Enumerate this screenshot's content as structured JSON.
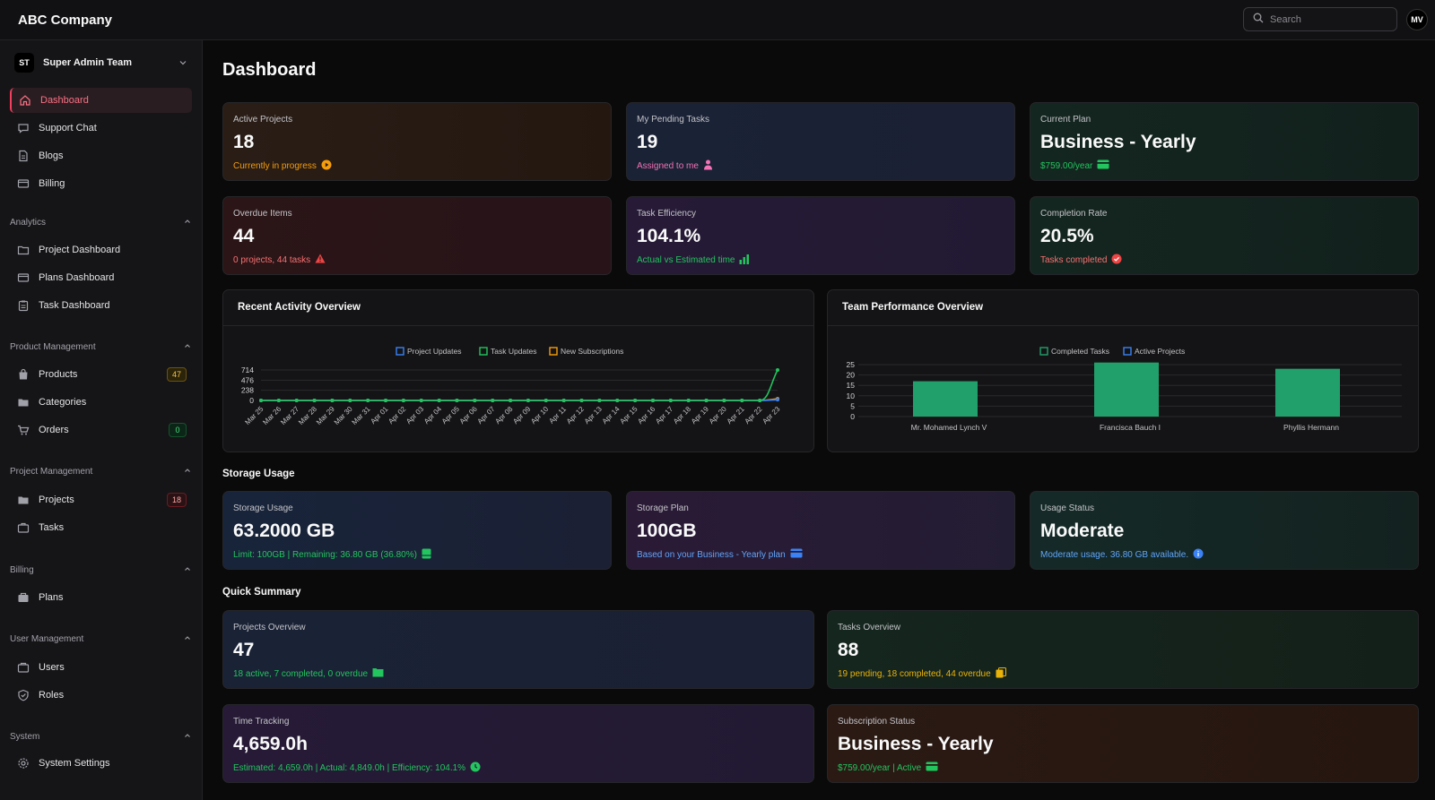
{
  "app": {
    "company": "ABC Company",
    "user_initials": "MV"
  },
  "search": {
    "placeholder": "Search"
  },
  "sidebar": {
    "team_initials": "ST",
    "team_name": "Super Admin Team",
    "top_items": [
      {
        "label": "Dashboard",
        "icon": "home-icon"
      },
      {
        "label": "Support Chat",
        "icon": "chat-icon"
      },
      {
        "label": "Blogs",
        "icon": "document-icon"
      },
      {
        "label": "Billing",
        "icon": "credit-card-icon"
      }
    ],
    "sections": [
      {
        "title": "Analytics",
        "items": [
          {
            "label": "Project Dashboard"
          },
          {
            "label": "Plans Dashboard"
          },
          {
            "label": "Task Dashboard"
          }
        ]
      },
      {
        "title": "Product Management",
        "items": [
          {
            "label": "Products",
            "badge": "47"
          },
          {
            "label": "Categories"
          },
          {
            "label": "Orders",
            "badge": "0"
          }
        ]
      },
      {
        "title": "Project Management",
        "items": [
          {
            "label": "Projects",
            "badge": "18"
          },
          {
            "label": "Tasks"
          }
        ]
      },
      {
        "title": "Billing",
        "items": [
          {
            "label": "Plans"
          }
        ]
      },
      {
        "title": "User Management",
        "items": [
          {
            "label": "Users"
          },
          {
            "label": "Roles"
          }
        ]
      },
      {
        "title": "System",
        "items": [
          {
            "label": "System Settings"
          }
        ]
      }
    ]
  },
  "page": {
    "title": "Dashboard"
  },
  "stats": [
    {
      "label": "Active Projects",
      "value": "18",
      "sub": "Currently in progress"
    },
    {
      "label": "My Pending Tasks",
      "value": "19",
      "sub": "Assigned to me"
    },
    {
      "label": "Current Plan",
      "value": "Business - Yearly",
      "sub": "$759.00/year"
    },
    {
      "label": "Overdue Items",
      "value": "44",
      "sub": "0 projects, 44 tasks"
    },
    {
      "label": "Task Efficiency",
      "value": "104.1%",
      "sub": "Actual vs Estimated time"
    },
    {
      "label": "Completion Rate",
      "value": "20.5%",
      "sub": "Tasks completed"
    }
  ],
  "activity_chart": {
    "title": "Recent Activity Overview",
    "chart_data": {
      "type": "line",
      "legend_position": "top-center",
      "ylim": [
        0,
        714
      ],
      "yticks": [
        0,
        238,
        476,
        714
      ],
      "x": [
        "Mar 25",
        "Mar 26",
        "Mar 27",
        "Mar 28",
        "Mar 29",
        "Mar 30",
        "Mar 31",
        "Apr 01",
        "Apr 02",
        "Apr 03",
        "Apr 04",
        "Apr 05",
        "Apr 06",
        "Apr 07",
        "Apr 08",
        "Apr 09",
        "Apr 10",
        "Apr 11",
        "Apr 12",
        "Apr 13",
        "Apr 14",
        "Apr 15",
        "Apr 16",
        "Apr 17",
        "Apr 18",
        "Apr 19",
        "Apr 20",
        "Apr 21",
        "Apr 22",
        "Apr 23"
      ],
      "series": [
        {
          "name": "Project Updates",
          "color": "#3b82f6",
          "values": [
            0,
            0,
            0,
            0,
            0,
            0,
            0,
            0,
            0,
            0,
            0,
            0,
            0,
            0,
            0,
            0,
            0,
            0,
            0,
            0,
            0,
            0,
            0,
            0,
            0,
            0,
            0,
            0,
            0,
            18
          ]
        },
        {
          "name": "Task Updates",
          "color": "#22c55e",
          "values": [
            0,
            0,
            0,
            0,
            0,
            0,
            0,
            0,
            0,
            0,
            0,
            0,
            0,
            0,
            0,
            0,
            0,
            0,
            0,
            0,
            0,
            0,
            0,
            0,
            0,
            0,
            0,
            0,
            0,
            714
          ]
        },
        {
          "name": "New Subscriptions",
          "color": "#f59e0b",
          "values": [
            0,
            0,
            0,
            0,
            0,
            0,
            0,
            0,
            0,
            0,
            0,
            0,
            0,
            0,
            0,
            0,
            0,
            0,
            0,
            0,
            0,
            0,
            0,
            0,
            0,
            0,
            0,
            0,
            0,
            40
          ]
        }
      ]
    }
  },
  "team_chart": {
    "title": "Team Performance Overview",
    "chart_data": {
      "type": "bar",
      "legend_position": "top-center",
      "categories": [
        "Mr. Mohamed Lynch V",
        "Francisca Bauch I",
        "Phyllis Hermann"
      ],
      "ylim": [
        0,
        25
      ],
      "yticks": [
        0,
        5,
        10,
        15,
        20,
        25
      ],
      "series": [
        {
          "name": "Completed Tasks",
          "color": "#22a06b",
          "values": [
            17,
            26,
            23
          ]
        },
        {
          "name": "Active Projects",
          "color": "#3b82f6",
          "values": [
            0,
            0,
            0
          ]
        }
      ]
    }
  },
  "storage": {
    "heading": "Storage Usage",
    "cards": [
      {
        "label": "Storage Usage",
        "value": "63.2000 GB",
        "sub": "Limit: 100GB | Remaining: 36.80 GB (36.80%)"
      },
      {
        "label": "Storage Plan",
        "value": "100GB",
        "sub": "Based on your Business - Yearly plan"
      },
      {
        "label": "Usage Status",
        "value": "Moderate",
        "sub": "Moderate usage. 36.80 GB available."
      }
    ]
  },
  "summary": {
    "heading": "Quick Summary",
    "cards": [
      {
        "label": "Projects Overview",
        "value": "47",
        "sub": "18 active, 7 completed, 0 overdue"
      },
      {
        "label": "Tasks Overview",
        "value": "88",
        "sub": "19 pending, 18 completed, 44 overdue"
      },
      {
        "label": "Time Tracking",
        "value": "4,659.0h",
        "sub": "Estimated: 4,659.0h | Actual: 4,849.0h | Efficiency: 104.1%"
      },
      {
        "label": "Subscription Status",
        "value": "Business - Yearly",
        "sub": "$759.00/year | Active"
      }
    ]
  }
}
